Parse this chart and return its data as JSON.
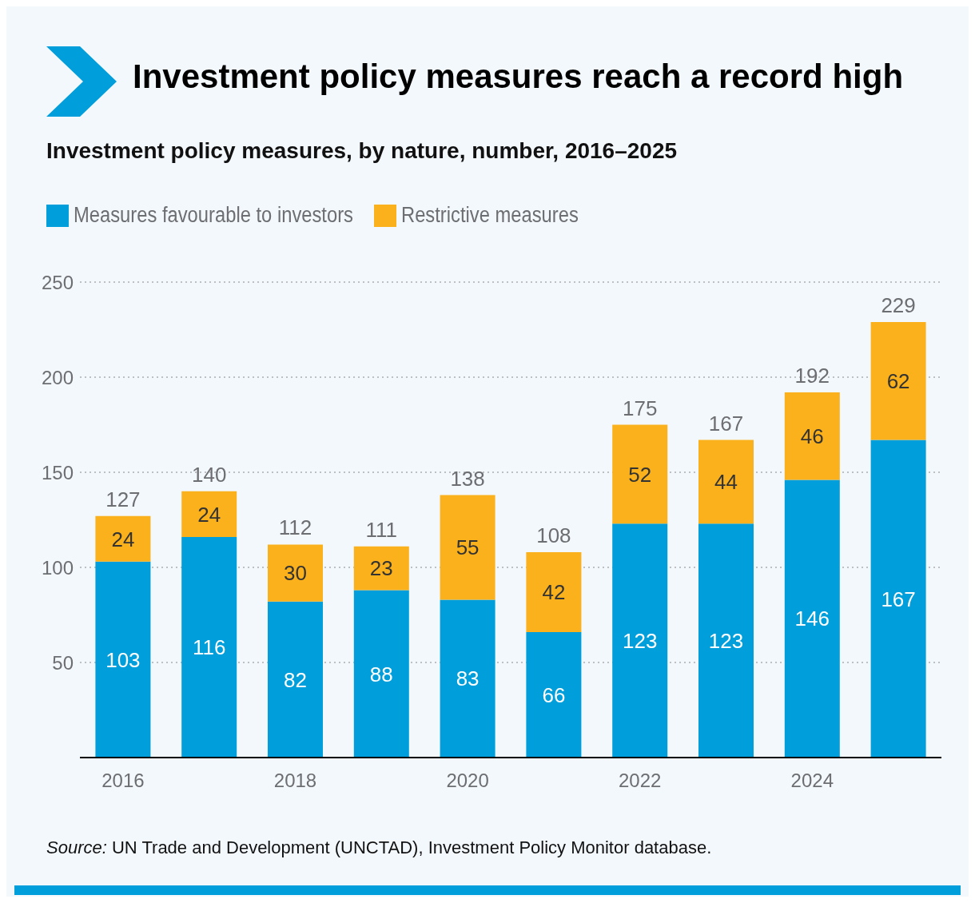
{
  "chart_data": {
    "type": "bar",
    "title": "Investment policy measures reach a record high",
    "subtitle": "Investment policy measures, by nature, number, 2016–2025",
    "categories": [
      "2016",
      null,
      "2018",
      null,
      "2020",
      null,
      "2022",
      null,
      "2024",
      null
    ],
    "series": [
      {
        "name": "Measures favourable to investors",
        "color": "#009edb",
        "values": [
          103,
          116,
          82,
          88,
          83,
          66,
          123,
          123,
          146,
          167
        ]
      },
      {
        "name": "Restrictive measures",
        "color": "#fbb11b",
        "values": [
          24,
          24,
          30,
          23,
          55,
          42,
          52,
          44,
          46,
          62
        ]
      }
    ],
    "stacked": true,
    "data_labels": true,
    "totals": [
      "127",
      "140",
      "112",
      "111",
      "138",
      "108",
      "175",
      "167",
      "192",
      "229"
    ],
    "ylim": [
      0,
      250
    ],
    "yticks": [
      {
        "value": 0,
        "label": null
      },
      50,
      100,
      150,
      200,
      250
    ],
    "grid": "y",
    "legend": "top left",
    "annotations": [
      "Source: UN Trade and Development (UNCTAD), Investment Policy Monitor database."
    ]
  }
}
